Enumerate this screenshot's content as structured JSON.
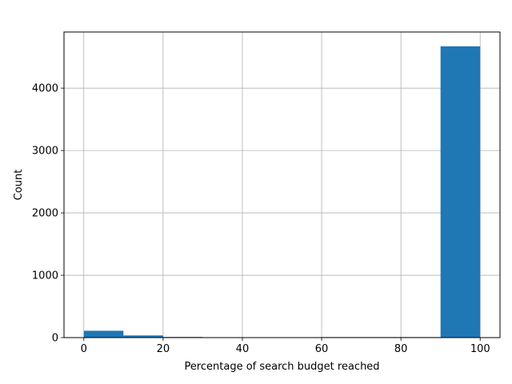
{
  "chart_data": {
    "type": "bar",
    "subtype": "histogram",
    "title": "",
    "xlabel": "Percentage of search budget reached",
    "ylabel": "Count",
    "xlim": [
      -5,
      105
    ],
    "ylim": [
      0,
      4900
    ],
    "xticks": [
      0,
      20,
      40,
      60,
      80,
      100
    ],
    "yticks": [
      0,
      1000,
      2000,
      3000,
      4000
    ],
    "grid": true,
    "bar_color": "#1f77b4",
    "bins": [
      {
        "x0": 0,
        "x1": 10,
        "count": 110
      },
      {
        "x0": 10,
        "x1": 20,
        "count": 35
      },
      {
        "x0": 20,
        "x1": 30,
        "count": 10
      },
      {
        "x0": 30,
        "x1": 40,
        "count": 2
      },
      {
        "x0": 40,
        "x1": 50,
        "count": 2
      },
      {
        "x0": 50,
        "x1": 60,
        "count": 2
      },
      {
        "x0": 60,
        "x1": 70,
        "count": 8
      },
      {
        "x0": 70,
        "x1": 80,
        "count": 8
      },
      {
        "x0": 80,
        "x1": 90,
        "count": 8
      },
      {
        "x0": 90,
        "x1": 100,
        "count": 4670
      }
    ]
  }
}
